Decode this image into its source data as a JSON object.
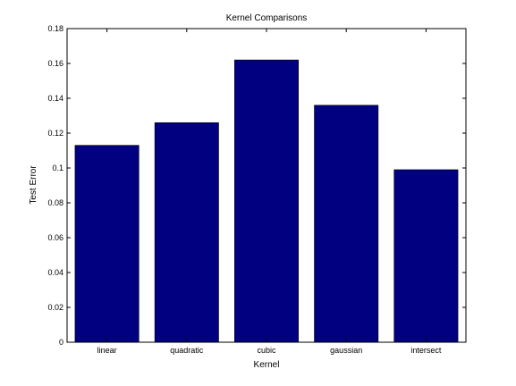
{
  "chart_data": {
    "type": "bar",
    "title": "Kernel Comparisons",
    "xlabel": "Kernel",
    "ylabel": "Test Error",
    "categories": [
      "linear",
      "quadratic",
      "cubic",
      "gaussian",
      "intersect"
    ],
    "values": [
      0.113,
      0.126,
      0.162,
      0.136,
      0.099
    ],
    "ylim": [
      0,
      0.18
    ],
    "yticks": [
      "0",
      "0.02",
      "0.04",
      "0.06",
      "0.08",
      "0.1",
      "0.12",
      "0.14",
      "0.16",
      "0.18"
    ],
    "grid": false,
    "legend": "none",
    "bar_color": "#000080",
    "axis_color": "#000000"
  }
}
